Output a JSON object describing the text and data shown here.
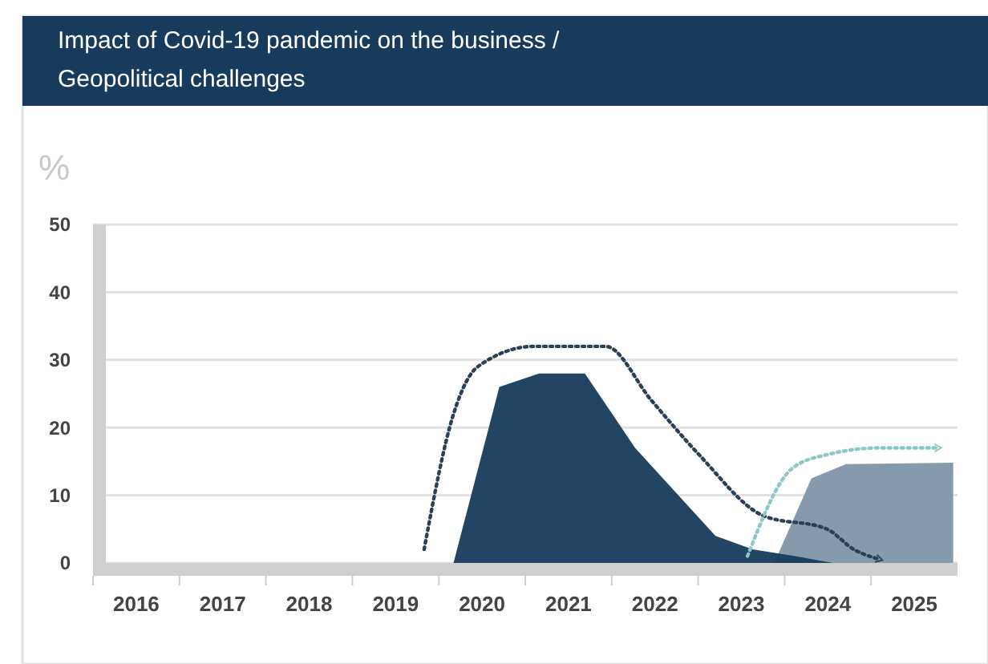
{
  "chart_data": {
    "type": "area",
    "title": "Impact of Covid-19 pandemic on the business / Geopolitical challenges",
    "ylabel": "%",
    "xlim": [
      2015.5,
      2025.5
    ],
    "xticks": [
      2016,
      2017,
      2018,
      2019,
      2020,
      2021,
      2022,
      2023,
      2024,
      2025
    ],
    "ylim": [
      0,
      50
    ],
    "yticks": [
      0,
      10,
      20,
      30,
      40,
      50
    ],
    "grid": "y",
    "series": [
      {
        "color": "#8095a8",
        "x": [
          2023.38,
          2023.81,
          2024.21,
          2025.45
        ],
        "values": [
          0,
          12.5,
          14.6,
          14.8
        ]
      },
      {
        "color": "#163b5c",
        "x": [
          2019.67,
          2020.2,
          2020.66,
          2021.19,
          2021.77,
          2022.7,
          2023.13,
          2023.62,
          2024.06
        ],
        "values": [
          0,
          26,
          28,
          28,
          17,
          4,
          2,
          1,
          0
        ]
      },
      {
        "type": "line",
        "line_style": "dotted",
        "color": "#2b3f55",
        "x": [
          2019.33,
          2019.67,
          2019.95,
          2020.6,
          2021.43,
          2021.96,
          2022.51,
          2023.25,
          2023.99,
          2024.3,
          2024.61
        ],
        "values": [
          2,
          22,
          29,
          32,
          32,
          24,
          16,
          7,
          5,
          2,
          0.5
        ]
      },
      {
        "type": "line",
        "line_style": "dotted",
        "color": "#8cc8c8",
        "x": [
          2023.07,
          2023.59,
          2023.99,
          2024.61,
          2025.29
        ],
        "values": [
          1,
          14,
          16,
          17,
          17
        ]
      }
    ]
  }
}
